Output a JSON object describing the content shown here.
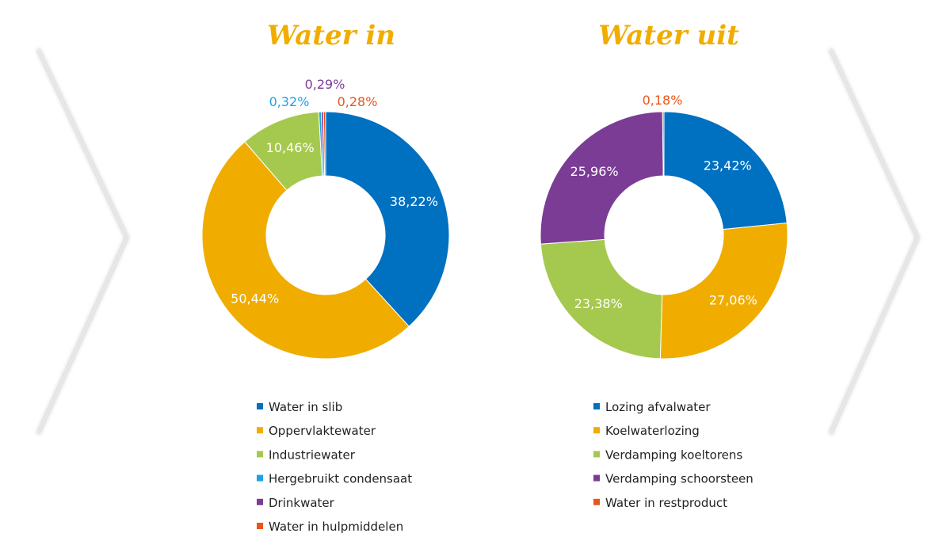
{
  "chart_data": [
    {
      "type": "pie",
      "title": "Water in",
      "categories": [
        "Water in slib",
        "Oppervlaktewater",
        "Industriewater",
        "Hergebruikt condensaat",
        "Drinkwater",
        "Water in hulpmiddelen"
      ],
      "values": [
        38.22,
        50.44,
        10.46,
        0.32,
        0.29,
        0.28
      ],
      "labels": [
        "38,22%",
        "50,44%",
        "10,46%",
        "0,32%",
        "0,29%",
        "0,28%"
      ],
      "colors": [
        "#0070c0",
        "#f0ad00",
        "#a5c94e",
        "#1aa3e8",
        "#7b3c96",
        "#e8561c"
      ],
      "donut": true,
      "legend_position": "bottom"
    },
    {
      "type": "pie",
      "title": "Water uit",
      "categories": [
        "Lozing afvalwater",
        "Koelwaterlozing",
        "Verdamping koeltorens",
        "Verdamping schoorsteen",
        "Water in restproduct"
      ],
      "values": [
        23.42,
        27.06,
        23.38,
        25.96,
        0.18
      ],
      "labels": [
        "23,42%",
        "27,06%",
        "23,38%",
        "25,96%",
        "0,18%"
      ],
      "colors": [
        "#0070c0",
        "#f0ad00",
        "#a5c94e",
        "#7b3c96",
        "#e8561c"
      ],
      "donut": true,
      "legend_position": "bottom"
    }
  ]
}
